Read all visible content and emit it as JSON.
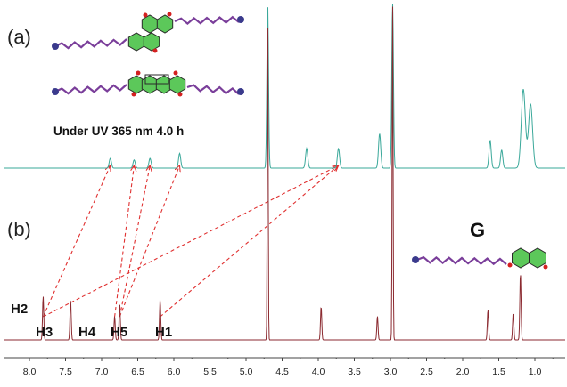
{
  "chart_data": {
    "type": "line",
    "xlim": [
      8.1,
      0.6
    ],
    "x_reversed": true,
    "x_ticks": [
      "8.0",
      "7.5",
      "7.0",
      "6.5",
      "6.0",
      "5.5",
      "5.0",
      "4.5",
      "4.0",
      "3.5",
      "3.0",
      "2.5",
      "2.0",
      "1.5",
      "1.0"
    ],
    "panels": [
      {
        "label": "(a)",
        "annotation": "Under UV 365 nm 4.0 h",
        "color": "#3aa89a",
        "peaks": [
          {
            "x": 6.88,
            "h": 0.06
          },
          {
            "x": 6.55,
            "h": 0.05
          },
          {
            "x": 6.33,
            "h": 0.06
          },
          {
            "x": 5.92,
            "h": 0.09
          },
          {
            "x": 4.7,
            "h": 1.0
          },
          {
            "x": 4.16,
            "h": 0.12
          },
          {
            "x": 3.72,
            "h": 0.12
          },
          {
            "x": 3.15,
            "h": 0.21
          },
          {
            "x": 2.97,
            "h": 1.0
          },
          {
            "x": 1.62,
            "h": 0.17
          },
          {
            "x": 1.46,
            "h": 0.11
          },
          {
            "x": 1.16,
            "h": 0.48
          },
          {
            "x": 1.06,
            "h": 0.39
          }
        ]
      },
      {
        "label": "(b)",
        "molecule_label": "G",
        "color": "#8b2a30",
        "peaks": [
          {
            "x": 7.81,
            "h": 0.13,
            "label": "H2"
          },
          {
            "x": 7.43,
            "h": 0.12,
            "label": "H3"
          },
          {
            "x": 6.82,
            "h": 0.07,
            "label": "H4"
          },
          {
            "x": 6.75,
            "h": 0.11,
            "label": "H5"
          },
          {
            "x": 6.19,
            "h": 0.12,
            "label": "H1"
          },
          {
            "x": 4.7,
            "h": 1.0
          },
          {
            "x": 3.96,
            "h": 0.1
          },
          {
            "x": 3.18,
            "h": 0.07
          },
          {
            "x": 2.97,
            "h": 1.0
          },
          {
            "x": 1.65,
            "h": 0.09
          },
          {
            "x": 1.3,
            "h": 0.08
          },
          {
            "x": 1.2,
            "h": 0.2
          }
        ]
      }
    ],
    "correlations": [
      {
        "from": 7.81,
        "to": 6.88
      },
      {
        "from": 6.82,
        "to": 6.55
      },
      {
        "from": 6.75,
        "to": 6.33
      },
      {
        "from": 6.75,
        "to": 5.92
      },
      {
        "from": 6.19,
        "to": 3.72
      },
      {
        "from": 7.81,
        "to": 3.72
      }
    ]
  },
  "colors": {
    "molecule_core": "#5cc85a",
    "chain": "#7a3e9a",
    "chain_end": "#3a3a8c",
    "carbonyl": "#d42020",
    "arrow": "#e03030"
  }
}
